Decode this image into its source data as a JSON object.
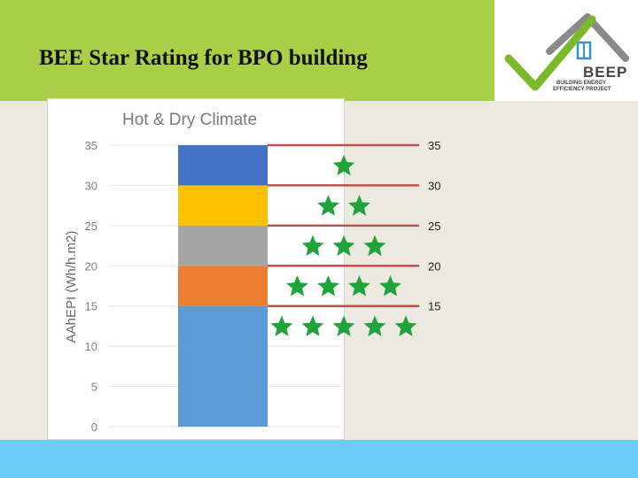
{
  "header": {
    "title": "BEE Star Rating for BPO building"
  },
  "logo": {
    "icon": "checkmark-house-icon",
    "brand": "BEEP",
    "line1": "BUILDING ENERGY",
    "line2": "EFFICIENCY PROJECT",
    "colors": {
      "check": "#7ab929",
      "roof": "#8a8a8a",
      "window": "#3a8fd0",
      "text": "#444444"
    }
  },
  "colors": {
    "header": "#a8cf45",
    "background": "#ece9e1",
    "footer": "#6bcdf3",
    "threshold_line": "#c0504d",
    "star": "#1fa33a"
  },
  "chart_data": {
    "type": "bar",
    "stacked": true,
    "title": "Hot & Dry Climate",
    "xlabel": "",
    "ylabel": "AAhEPI (Wh/h.m2)",
    "ylim": [
      0,
      35
    ],
    "yticks": [
      0,
      5,
      10,
      15,
      20,
      25,
      30,
      35
    ],
    "grid": true,
    "segments": [
      {
        "from": 0,
        "to": 15,
        "color": "#5b9bd5"
      },
      {
        "from": 15,
        "to": 20,
        "color": "#ed7d31"
      },
      {
        "from": 20,
        "to": 25,
        "color": "#a5a5a5"
      },
      {
        "from": 25,
        "to": 30,
        "color": "#ffc000"
      },
      {
        "from": 30,
        "to": 35,
        "color": "#4472c4"
      }
    ],
    "thresholds": [
      35,
      30,
      25,
      20,
      15
    ],
    "threshold_labels": [
      "35",
      "30",
      "25",
      "20",
      "15"
    ],
    "star_bands": [
      {
        "from": 30,
        "to": 35,
        "stars": 1
      },
      {
        "from": 25,
        "to": 30,
        "stars": 2
      },
      {
        "from": 20,
        "to": 25,
        "stars": 3
      },
      {
        "from": 15,
        "to": 20,
        "stars": 4
      },
      {
        "from": 10,
        "to": 15,
        "stars": 5
      }
    ]
  }
}
